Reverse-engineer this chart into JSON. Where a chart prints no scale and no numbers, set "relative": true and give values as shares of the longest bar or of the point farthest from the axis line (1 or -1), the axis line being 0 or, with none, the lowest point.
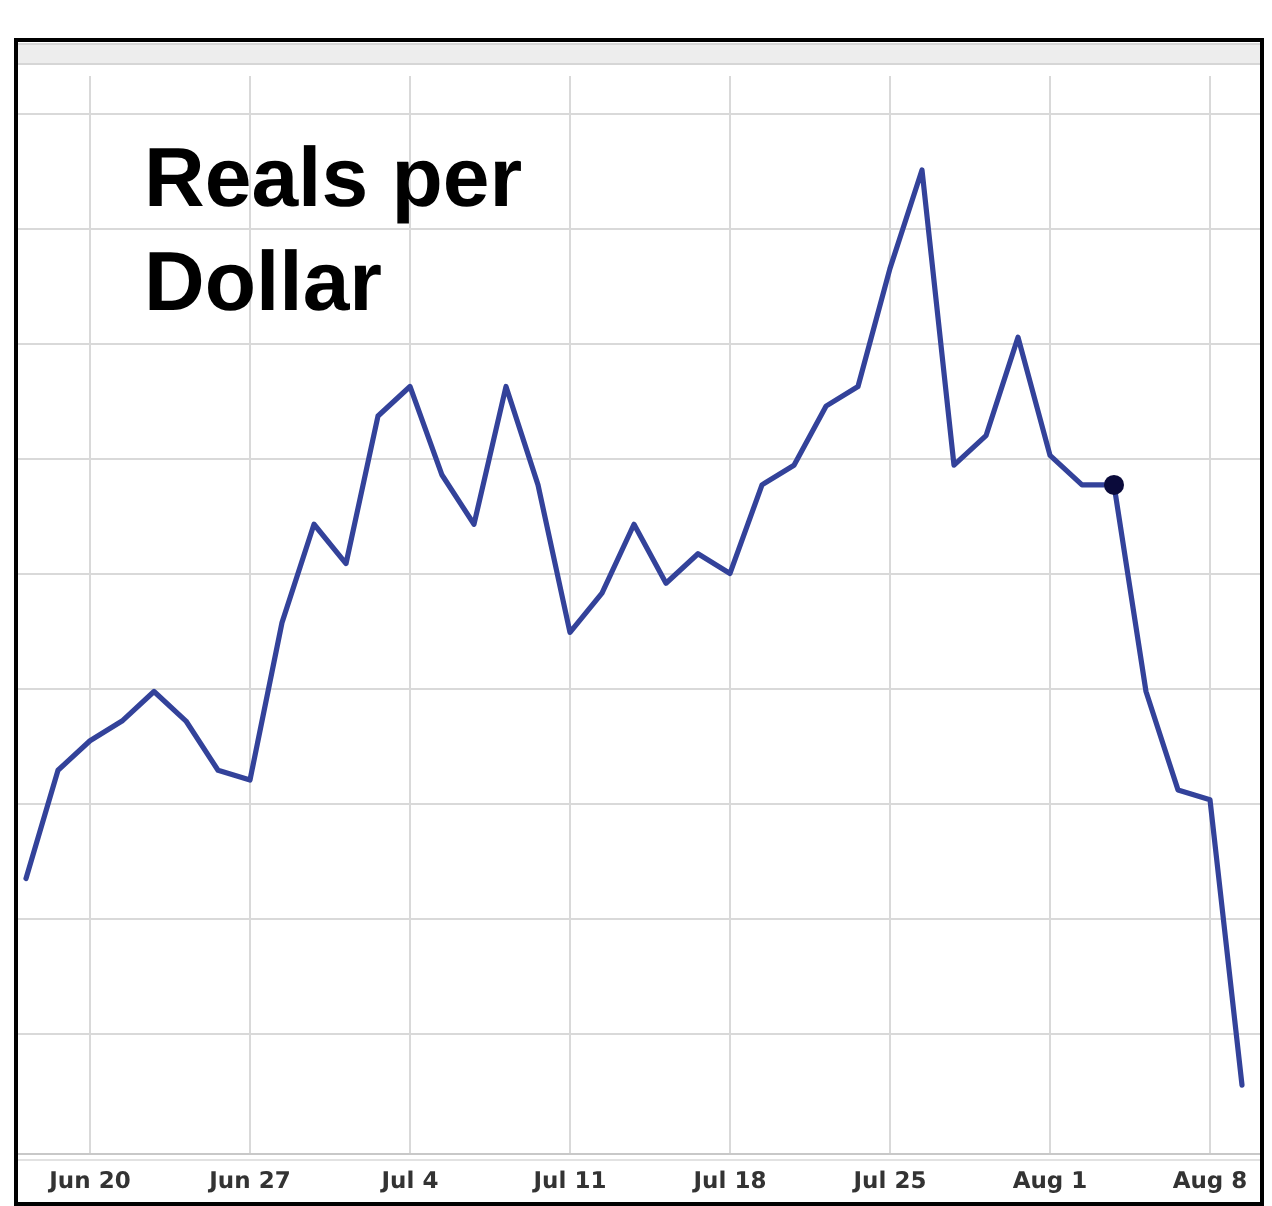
{
  "chart_data": {
    "type": "line",
    "title": "Reals per Dollar",
    "relative": true,
    "grid": true,
    "categories": [
      null,
      null,
      "Jun 20",
      null,
      null,
      null,
      null,
      "Jun 27",
      null,
      null,
      null,
      null,
      "Jul 4",
      null,
      null,
      null,
      null,
      "Jul 11",
      null,
      null,
      null,
      null,
      "Jul 18",
      null,
      null,
      null,
      null,
      "Jul 25",
      null,
      null,
      null,
      null,
      "Aug 1",
      null,
      null,
      null,
      null,
      "Aug 8",
      null
    ],
    "series": [
      {
        "color": "#33429a",
        "marker": "none",
        "values": [
          0.28,
          0.39,
          0.42,
          0.44,
          0.47,
          0.44,
          0.39,
          0.38,
          0.54,
          0.64,
          0.6,
          0.75,
          0.78,
          0.69,
          0.64,
          0.78,
          0.68,
          0.53,
          0.57,
          0.64,
          0.58,
          0.61,
          0.59,
          0.68,
          0.7,
          0.76,
          0.78,
          0.9,
          1,
          0.7,
          0.73,
          0.83,
          0.71,
          0.68,
          0.68,
          0.47,
          0.37,
          0.36,
          0.07
        ]
      },
      {
        "type": "scatter",
        "color": "#0b0b3b",
        "marker": "circle",
        "values": [
          null,
          null,
          null,
          null,
          null,
          null,
          null,
          null,
          null,
          null,
          null,
          null,
          null,
          null,
          null,
          null,
          null,
          null,
          null,
          null,
          null,
          null,
          null,
          null,
          null,
          null,
          null,
          null,
          null,
          null,
          null,
          null,
          null,
          null,
          0.68,
          null,
          null,
          null,
          null
        ]
      }
    ]
  }
}
